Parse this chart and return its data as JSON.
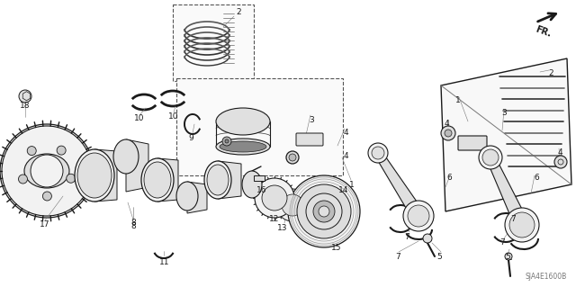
{
  "bg_color": "#ffffff",
  "fig_width": 6.4,
  "fig_height": 3.19,
  "dpi": 100,
  "watermark": "SJA4E1600B",
  "fr_label": "FR.",
  "line_color": "#1a1a1a",
  "label_fontsize": 6.5,
  "gray_fill": "#e0e0e0",
  "light_fill": "#f2f2f2",
  "dark_fill": "#888888"
}
